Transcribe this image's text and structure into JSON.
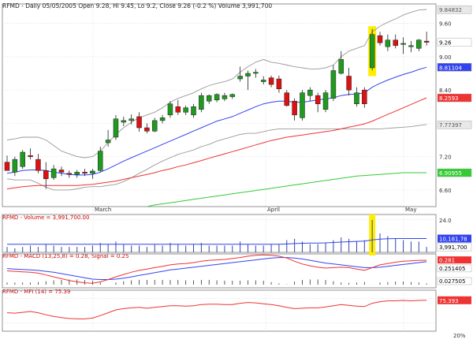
{
  "header": {
    "symbol": "RFMD",
    "interval": "Daily 05/05/2005",
    "ohlc": "Open 9.28, Hi 9.45, Lo 9.2, Close 9.26 (-0.2 %)",
    "volume": "Volume 3,991,700"
  },
  "colors": {
    "up": "#1f9a1f",
    "down": "#dd1111",
    "bollinger": "#999999",
    "ma_blue": "#3344ee",
    "ma_red": "#ee3333",
    "ma_green": "#33cc33",
    "highlight": "#ffee00",
    "grid": "#cfcfcf"
  },
  "x_labels": [
    "March",
    "April",
    "May"
  ],
  "panels": {
    "volume": {
      "label": "RFMD - Volume = 3,991,700.00",
      "right_values": [
        "24.0",
        "10,181,78",
        "3,991,700"
      ]
    },
    "macd": {
      "label": "RFMD - MACD (13,25,8) = 0.28, Signal = 0.25",
      "right_values": [
        "0.281",
        "0.251405",
        "0.027505"
      ]
    },
    "mfi": {
      "label": "RFMD - MFI (14) = 75.39",
      "right_values": [
        "75.393",
        "20%"
      ]
    }
  },
  "chart_data": [
    {
      "type": "candlestick",
      "title": "RFMD - Daily 05/05/2005",
      "ylim": [
        6.3,
        9.95
      ],
      "y_ticks": [
        "6.60",
        "7.20",
        "7.80",
        "8.40",
        "9.00",
        "9.60"
      ],
      "right_labels": {
        "price": "9.26",
        "bb_upper": "9.84832",
        "ma_short": "8.81104",
        "ma_mid": "8.2593",
        "bb_lower": "7.77397",
        "ma_long": "6.90955"
      },
      "candles": [
        {
          "o": 7.1,
          "h": 7.22,
          "l": 6.98,
          "c": 6.95
        },
        {
          "o": 6.92,
          "h": 7.2,
          "l": 6.85,
          "c": 7.15
        },
        {
          "o": 7.02,
          "h": 7.32,
          "l": 6.98,
          "c": 7.28
        },
        {
          "o": 7.22,
          "h": 7.35,
          "l": 7.15,
          "c": 7.2
        },
        {
          "o": 7.15,
          "h": 7.25,
          "l": 6.9,
          "c": 6.95
        },
        {
          "o": 6.95,
          "h": 7.1,
          "l": 6.62,
          "c": 6.8
        },
        {
          "o": 6.82,
          "h": 7.05,
          "l": 6.78,
          "c": 6.98
        },
        {
          "o": 6.96,
          "h": 7.02,
          "l": 6.85,
          "c": 6.92
        },
        {
          "o": 6.9,
          "h": 6.95,
          "l": 6.82,
          "c": 6.88
        },
        {
          "o": 6.88,
          "h": 6.96,
          "l": 6.82,
          "c": 6.92
        },
        {
          "o": 6.92,
          "h": 6.98,
          "l": 6.85,
          "c": 6.9
        },
        {
          "o": 6.9,
          "h": 6.98,
          "l": 6.8,
          "c": 6.94
        },
        {
          "o": 6.95,
          "h": 7.38,
          "l": 6.92,
          "c": 7.3
        },
        {
          "o": 7.45,
          "h": 7.68,
          "l": 7.38,
          "c": 7.5
        },
        {
          "o": 7.55,
          "h": 7.95,
          "l": 7.5,
          "c": 7.88
        },
        {
          "o": 7.82,
          "h": 7.92,
          "l": 7.75,
          "c": 7.85
        },
        {
          "o": 7.85,
          "h": 7.96,
          "l": 7.78,
          "c": 7.88
        },
        {
          "o": 7.92,
          "h": 8.0,
          "l": 7.65,
          "c": 7.72
        },
        {
          "o": 7.72,
          "h": 7.8,
          "l": 7.62,
          "c": 7.66
        },
        {
          "o": 7.66,
          "h": 7.9,
          "l": 7.64,
          "c": 7.85
        },
        {
          "o": 7.85,
          "h": 7.95,
          "l": 7.8,
          "c": 7.9
        },
        {
          "o": 7.95,
          "h": 8.2,
          "l": 7.9,
          "c": 8.15
        },
        {
          "o": 8.1,
          "h": 8.22,
          "l": 7.95,
          "c": 8.0
        },
        {
          "o": 8.0,
          "h": 8.12,
          "l": 7.95,
          "c": 8.08
        },
        {
          "o": 7.95,
          "h": 8.15,
          "l": 7.9,
          "c": 8.1
        },
        {
          "o": 8.05,
          "h": 8.35,
          "l": 8.0,
          "c": 8.3
        },
        {
          "o": 8.2,
          "h": 8.32,
          "l": 8.15,
          "c": 8.3
        },
        {
          "o": 8.22,
          "h": 8.34,
          "l": 8.18,
          "c": 8.32
        },
        {
          "o": 8.24,
          "h": 8.35,
          "l": 8.2,
          "c": 8.3
        },
        {
          "o": 8.28,
          "h": 8.34,
          "l": 8.24,
          "c": 8.32
        },
        {
          "o": 8.6,
          "h": 8.82,
          "l": 8.55,
          "c": 8.65
        },
        {
          "o": 8.65,
          "h": 8.75,
          "l": 8.4,
          "c": 8.7
        },
        {
          "o": 8.7,
          "h": 8.78,
          "l": 8.62,
          "c": 8.72
        },
        {
          "o": 8.55,
          "h": 8.65,
          "l": 8.5,
          "c": 8.58
        },
        {
          "o": 8.62,
          "h": 8.66,
          "l": 8.45,
          "c": 8.5
        },
        {
          "o": 8.6,
          "h": 8.66,
          "l": 8.35,
          "c": 8.42
        },
        {
          "o": 8.35,
          "h": 8.4,
          "l": 8.1,
          "c": 8.12
        },
        {
          "o": 8.2,
          "h": 8.25,
          "l": 7.85,
          "c": 7.95
        },
        {
          "o": 7.9,
          "h": 8.4,
          "l": 7.85,
          "c": 8.35
        },
        {
          "o": 8.3,
          "h": 8.45,
          "l": 8.2,
          "c": 8.4
        },
        {
          "o": 8.3,
          "h": 8.35,
          "l": 8.0,
          "c": 8.15
        },
        {
          "o": 8.05,
          "h": 8.4,
          "l": 8.0,
          "c": 8.35
        },
        {
          "o": 8.25,
          "h": 8.85,
          "l": 8.2,
          "c": 8.75
        },
        {
          "o": 8.7,
          "h": 9.1,
          "l": 8.68,
          "c": 8.95
        },
        {
          "o": 8.65,
          "h": 8.8,
          "l": 8.3,
          "c": 8.4
        },
        {
          "o": 8.15,
          "h": 8.45,
          "l": 8.1,
          "c": 8.35
        },
        {
          "o": 8.4,
          "h": 8.45,
          "l": 8.08,
          "c": 8.15
        },
        {
          "o": 8.8,
          "h": 9.5,
          "l": 8.75,
          "c": 9.4
        },
        {
          "o": 9.38,
          "h": 9.45,
          "l": 9.2,
          "c": 9.25
        },
        {
          "o": 9.18,
          "h": 9.4,
          "l": 9.1,
          "c": 9.3
        },
        {
          "o": 9.3,
          "h": 9.4,
          "l": 9.15,
          "c": 9.2
        },
        {
          "o": 9.22,
          "h": 9.35,
          "l": 9.05,
          "c": 9.24
        },
        {
          "o": 9.18,
          "h": 9.28,
          "l": 9.08,
          "c": 9.2
        },
        {
          "o": 9.15,
          "h": 9.32,
          "l": 9.1,
          "c": 9.3
        },
        {
          "o": 9.28,
          "h": 9.45,
          "l": 9.2,
          "c": 9.26
        }
      ],
      "bb_upper": [
        7.5,
        7.52,
        7.55,
        7.55,
        7.55,
        7.5,
        7.4,
        7.3,
        7.25,
        7.2,
        7.18,
        7.2,
        7.3,
        7.45,
        7.6,
        7.72,
        7.82,
        7.9,
        7.95,
        8.0,
        8.08,
        8.18,
        8.25,
        8.3,
        8.35,
        8.42,
        8.48,
        8.52,
        8.55,
        8.6,
        8.72,
        8.82,
        8.9,
        8.95,
        8.9,
        8.88,
        8.85,
        8.82,
        8.8,
        8.78,
        8.78,
        8.8,
        8.85,
        9.0,
        9.1,
        9.15,
        9.2,
        9.45,
        9.55,
        9.62,
        9.68,
        9.75,
        9.8,
        9.84,
        9.85
      ],
      "bb_lower": [
        6.8,
        6.78,
        6.78,
        6.78,
        6.72,
        6.65,
        6.6,
        6.6,
        6.6,
        6.62,
        6.65,
        6.66,
        6.66,
        6.68,
        6.7,
        6.75,
        6.82,
        6.9,
        6.97,
        7.05,
        7.12,
        7.18,
        7.24,
        7.28,
        7.32,
        7.38,
        7.42,
        7.48,
        7.52,
        7.56,
        7.6,
        7.62,
        7.62,
        7.65,
        7.68,
        7.7,
        7.7,
        7.7,
        7.7,
        7.7,
        7.7,
        7.7,
        7.7,
        7.7,
        7.7,
        7.7,
        7.7,
        7.7,
        7.7,
        7.71,
        7.72,
        7.73,
        7.74,
        7.76,
        7.78
      ],
      "ma_short": [
        6.9,
        6.92,
        6.95,
        6.96,
        6.96,
        6.95,
        6.92,
        6.9,
        6.88,
        6.87,
        6.87,
        6.88,
        6.92,
        6.98,
        7.05,
        7.12,
        7.18,
        7.24,
        7.3,
        7.36,
        7.42,
        7.48,
        7.54,
        7.6,
        7.66,
        7.72,
        7.78,
        7.84,
        7.88,
        7.92,
        7.98,
        8.04,
        8.1,
        8.15,
        8.18,
        8.2,
        8.2,
        8.18,
        8.18,
        8.2,
        8.22,
        8.24,
        8.26,
        8.3,
        8.32,
        8.33,
        8.35,
        8.45,
        8.52,
        8.58,
        8.63,
        8.68,
        8.72,
        8.77,
        8.81
      ],
      "ma_mid": [
        6.62,
        6.64,
        6.66,
        6.67,
        6.68,
        6.68,
        6.68,
        6.68,
        6.68,
        6.68,
        6.69,
        6.7,
        6.72,
        6.74,
        6.76,
        6.79,
        6.82,
        6.85,
        6.88,
        6.91,
        6.95,
        6.98,
        7.02,
        7.05,
        7.09,
        7.13,
        7.17,
        7.21,
        7.25,
        7.29,
        7.33,
        7.37,
        7.41,
        7.45,
        7.49,
        7.52,
        7.55,
        7.57,
        7.59,
        7.61,
        7.63,
        7.65,
        7.67,
        7.7,
        7.73,
        7.76,
        7.79,
        7.84,
        7.9,
        7.96,
        8.02,
        8.08,
        8.14,
        8.2,
        8.26
      ],
      "ma_long_start": 18,
      "ma_long": [
        6.3,
        6.33,
        6.35,
        6.37,
        6.39,
        6.41,
        6.43,
        6.45,
        6.47,
        6.49,
        6.51,
        6.53,
        6.55,
        6.57,
        6.59,
        6.61,
        6.63,
        6.65,
        6.67,
        6.69,
        6.71,
        6.73,
        6.75,
        6.77,
        6.79,
        6.81,
        6.83,
        6.85,
        6.86,
        6.87,
        6.88,
        6.89,
        6.9,
        6.91,
        6.91,
        6.91,
        6.91
      ],
      "highlight_index": 47
    },
    {
      "type": "bar",
      "title": "RFMD - Volume = 3,991,700.00",
      "volume_bars": [
        4,
        3,
        4,
        5,
        4,
        6,
        5,
        4,
        4,
        4,
        4,
        5,
        7,
        6,
        8,
        6,
        5,
        5,
        4,
        6,
        5,
        7,
        6,
        5,
        6,
        7,
        5,
        5,
        5,
        5,
        8,
        6,
        5,
        5,
        6,
        6,
        9,
        10,
        8,
        6,
        6,
        7,
        9,
        11,
        10,
        8,
        9,
        24,
        14,
        12,
        10,
        9,
        8,
        8,
        4
      ],
      "volume_avg": [
        6,
        6,
        6,
        6,
        6,
        6,
        6,
        6,
        6,
        6,
        6,
        6,
        6,
        6,
        6,
        6,
        6,
        6,
        6,
        6,
        6,
        6,
        6,
        6,
        6,
        6,
        6,
        6,
        6,
        6,
        6,
        6,
        6,
        6,
        6,
        6,
        6.2,
        6.5,
        6.7,
        6.8,
        6.9,
        7,
        7.3,
        7.6,
        7.9,
        8.1,
        8.3,
        9.2,
        9.8,
        10.1,
        10.2,
        10.2,
        10.2,
        10.2,
        10.18
      ],
      "ylim": [
        0,
        28
      ]
    },
    {
      "type": "line",
      "title": "RFMD - MACD (13,25,8) = 0.28, Signal = 0.25",
      "macd": [
        0.05,
        0.04,
        0.03,
        0.02,
        0.0,
        -0.04,
        -0.08,
        -0.12,
        -0.16,
        -0.19,
        -0.21,
        -0.22,
        -0.19,
        -0.14,
        -0.08,
        -0.03,
        0.02,
        0.06,
        0.09,
        0.12,
        0.15,
        0.18,
        0.2,
        0.21,
        0.23,
        0.26,
        0.28,
        0.29,
        0.3,
        0.32,
        0.34,
        0.37,
        0.39,
        0.4,
        0.39,
        0.37,
        0.33,
        0.26,
        0.2,
        0.16,
        0.13,
        0.11,
        0.12,
        0.13,
        0.12,
        0.09,
        0.06,
        0.12,
        0.18,
        0.21,
        0.24,
        0.26,
        0.27,
        0.28,
        0.28
      ],
      "signal": [
        0.1,
        0.09,
        0.08,
        0.07,
        0.06,
        0.04,
        0.02,
        -0.01,
        -0.04,
        -0.07,
        -0.1,
        -0.13,
        -0.14,
        -0.14,
        -0.13,
        -0.11,
        -0.08,
        -0.05,
        -0.02,
        0.01,
        0.04,
        0.07,
        0.09,
        0.11,
        0.13,
        0.15,
        0.17,
        0.19,
        0.21,
        0.23,
        0.25,
        0.27,
        0.29,
        0.31,
        0.33,
        0.34,
        0.34,
        0.33,
        0.31,
        0.28,
        0.25,
        0.22,
        0.2,
        0.18,
        0.16,
        0.14,
        0.12,
        0.12,
        0.13,
        0.15,
        0.17,
        0.19,
        0.21,
        0.23,
        0.25
      ],
      "histogram": [
        -0.05,
        -0.05,
        -0.05,
        -0.05,
        -0.06,
        -0.08,
        -0.1,
        -0.11,
        -0.12,
        -0.12,
        -0.11,
        -0.09,
        -0.05,
        0.0,
        0.05,
        0.08,
        0.1,
        0.11,
        0.11,
        0.11,
        0.11,
        0.11,
        0.11,
        0.1,
        0.1,
        0.11,
        0.11,
        0.1,
        0.09,
        0.09,
        0.09,
        0.1,
        0.1,
        0.09,
        0.06,
        0.03,
        -0.01,
        -0.07,
        -0.11,
        -0.12,
        -0.12,
        -0.11,
        -0.08,
        -0.05,
        -0.04,
        -0.05,
        -0.06,
        0.0,
        0.05,
        0.06,
        0.07,
        0.07,
        0.06,
        0.05,
        0.03
      ],
      "ylim": [
        -0.32,
        0.42
      ]
    },
    {
      "type": "line",
      "title": "RFMD - MFI (14) = 75.39",
      "mfi": [
        45,
        44,
        46,
        48,
        45,
        40,
        36,
        33,
        31,
        30,
        30,
        32,
        38,
        45,
        52,
        55,
        57,
        58,
        56,
        58,
        60,
        62,
        62,
        61,
        62,
        65,
        66,
        66,
        65,
        65,
        68,
        70,
        69,
        67,
        65,
        62,
        58,
        55,
        56,
        57,
        57,
        59,
        62,
        65,
        63,
        61,
        60,
        68,
        72,
        74,
        74,
        75,
        74,
        75,
        75.39
      ],
      "ylim": [
        0,
        100
      ]
    }
  ]
}
